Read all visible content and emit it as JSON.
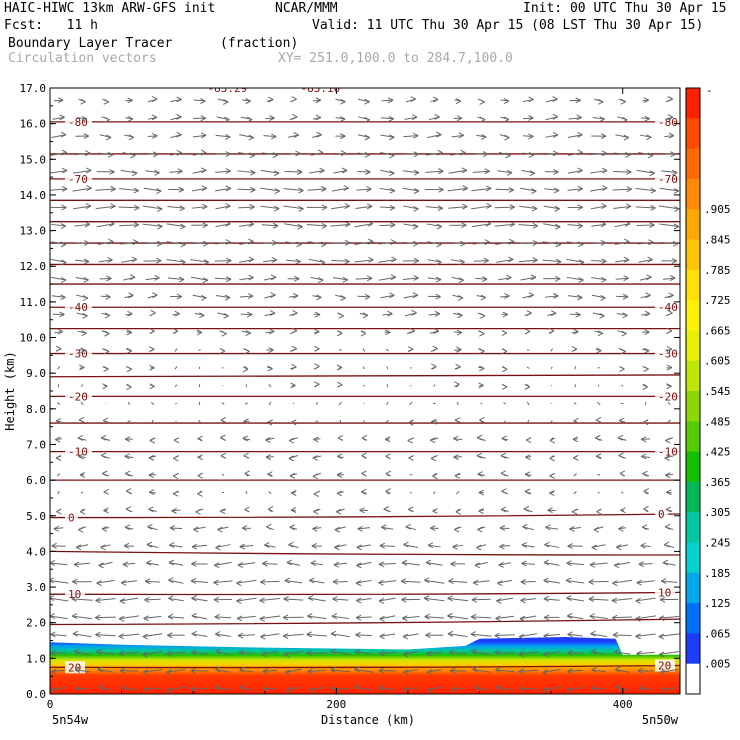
{
  "header": {
    "model": "HAIC-HIWC 13km ARW-GFS init",
    "org": "NCAR/MMM",
    "init": "Init: 00 UTC Thu 30 Apr 15",
    "fcst": "Fcst:   11 h",
    "valid": "Valid: 11 UTC Thu 30 Apr 15 (08 LST Thu 30 Apr 15)",
    "field": "Boundary Layer Tracer",
    "units": "(fraction)",
    "vectors": "Circulation vectors",
    "xsec": "XY= 251.0,100.0 to 284.7,100.0"
  },
  "chart_data": {
    "type": "heatmap",
    "xlabel": "Distance (km)",
    "ylabel": "Height (km)",
    "xlim": [
      0,
      440
    ],
    "ylim": [
      0,
      17
    ],
    "x_ticks": [
      "0",
      "200",
      "400"
    ],
    "x_tick_values": [
      0,
      200,
      400
    ],
    "y_ticks": [
      "0.0",
      "1.0",
      "2.0",
      "3.0",
      "4.0",
      "5.0",
      "6.0",
      "7.0",
      "8.0",
      "9.0",
      "10.0",
      "11.0",
      "12.0",
      "13.0",
      "14.0",
      "15.0",
      "16.0",
      "17.0"
    ],
    "x_endpoints": {
      "left": "5n54w",
      "right": "5n50w"
    },
    "colorbar": {
      "labels": [
        ".905",
        ".845",
        ".785",
        ".725",
        ".665",
        ".605",
        ".545",
        ".485",
        ".425",
        ".365",
        ".305",
        ".245",
        ".185",
        ".125",
        ".065",
        ".005"
      ],
      "top_label": "-",
      "colors_top_to_bottom": [
        "#ff2000",
        "#ff4a00",
        "#ff6a00",
        "#ff8a00",
        "#ffa800",
        "#ffc400",
        "#ffe000",
        "#fff200",
        "#e6f000",
        "#bfe600",
        "#8cd900",
        "#55cc00",
        "#12c000",
        "#00b85a",
        "#00c8a0",
        "#00d2d2",
        "#00a8f0",
        "#0070ff",
        "#1e3cff",
        "#ffffff"
      ]
    },
    "boundary_layer_top_km": [
      {
        "x": 0,
        "y": 1.45
      },
      {
        "x": 50,
        "y": 1.38
      },
      {
        "x": 150,
        "y": 1.3
      },
      {
        "x": 250,
        "y": 1.25
      },
      {
        "x": 290,
        "y": 1.35
      },
      {
        "x": 300,
        "y": 1.55
      },
      {
        "x": 360,
        "y": 1.6
      },
      {
        "x": 395,
        "y": 1.55
      },
      {
        "x": 400,
        "y": 1.1
      },
      {
        "x": 440,
        "y": 1.1
      }
    ],
    "temperature_contours": [
      {
        "value": 20,
        "label": "20",
        "left_km": 0.75,
        "right_km": 0.8
      },
      {
        "value": 15,
        "left_km": 1.95,
        "right_km": 2.1
      },
      {
        "value": 10,
        "label": "10",
        "left_km": 2.8,
        "right_km": 2.85
      },
      {
        "value": 5,
        "left_km": 4.0,
        "right_km": 3.9
      },
      {
        "value": 0,
        "label": "0",
        "left_km": 4.95,
        "right_km": 5.05
      },
      {
        "value": -5,
        "left_km": 6.0,
        "right_km": 6.0
      },
      {
        "value": -10,
        "label": "-10",
        "left_km": 6.8,
        "right_km": 6.8
      },
      {
        "value": -15,
        "left_km": 7.6,
        "right_km": 7.6
      },
      {
        "value": -20,
        "label": "-20",
        "left_km": 8.35,
        "right_km": 8.35
      },
      {
        "value": -25,
        "left_km": 8.9,
        "right_km": 8.95
      },
      {
        "value": -30,
        "label": "-30",
        "left_km": 9.55,
        "right_km": 9.55
      },
      {
        "value": -35,
        "left_km": 10.25,
        "right_km": 10.25
      },
      {
        "value": -40,
        "label": "-40",
        "left_km": 10.85,
        "right_km": 10.85
      },
      {
        "value": -45,
        "left_km": 11.5,
        "right_km": 11.5
      },
      {
        "value": -50,
        "left_km": 12.05,
        "right_km": 12.05
      },
      {
        "value": -55,
        "left_km": 12.65,
        "right_km": 12.65
      },
      {
        "value": -60,
        "left_km": 13.25,
        "right_km": 13.25
      },
      {
        "value": -65,
        "left_km": 13.85,
        "right_km": 13.85
      },
      {
        "value": -70,
        "label": "-70",
        "left_km": 14.45,
        "right_km": 14.45
      },
      {
        "value": -75,
        "left_km": 15.15,
        "right_km": 15.15
      },
      {
        "value": -80,
        "label": "-80",
        "left_km": 16.05,
        "right_km": 16.05
      }
    ],
    "top_annotations": [
      {
        "x": 110,
        "text": "-83.29"
      },
      {
        "x": 175,
        "text": "-83.10"
      }
    ],
    "circulation_wind_by_height": [
      {
        "y": 0.3,
        "u": -0.9
      },
      {
        "y": 1.5,
        "u": -1.0
      },
      {
        "y": 3.0,
        "u": -1.0
      },
      {
        "y": 4.5,
        "u": -0.6
      },
      {
        "y": 5.5,
        "u": -0.2
      },
      {
        "y": 7.0,
        "u": -0.4
      },
      {
        "y": 8.5,
        "u": 0.1
      },
      {
        "y": 10.0,
        "u": 0.3
      },
      {
        "y": 12.0,
        "u": 0.9
      },
      {
        "y": 14.0,
        "u": 1.0
      },
      {
        "y": 16.5,
        "u": 0.5
      }
    ]
  }
}
